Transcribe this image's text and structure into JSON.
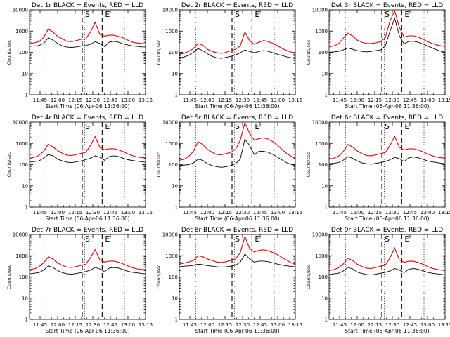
{
  "chart_data": {
    "type": "line",
    "layout": "3x3 grid of panels",
    "x_tick_labels": [
      "11:45",
      "12:00",
      "12:15",
      "12:30",
      "12:45",
      "13:00",
      "13:15"
    ],
    "x_tick_minutes": [
      705,
      720,
      735,
      750,
      765,
      780,
      795
    ],
    "xlim": [
      "11:36",
      "13:15"
    ],
    "xlabel": "Start Time (06-Apr-06 11:36:00)",
    "ylabel": "Counts/sec",
    "yscale": "log",
    "ylim": [
      1,
      10000
    ],
    "y_tick_labels": [
      "1",
      "10",
      "100",
      "1000",
      "10000"
    ],
    "dotted_lines": [
      "11:50",
      "12:23",
      "12:57"
    ],
    "dashed_lines": [
      "12:21",
      "12:38"
    ],
    "markers": [
      {
        "label": "S",
        "at": "12:21"
      },
      {
        "label": "E",
        "at": "12:38"
      }
    ],
    "x": [
      "11:36",
      "11:40",
      "11:44",
      "11:48",
      "11:52",
      "11:56",
      "12:00",
      "12:04",
      "12:08",
      "12:12",
      "12:16",
      "12:20",
      "12:24",
      "12:28",
      "12:32",
      "12:36",
      "12:40",
      "12:44",
      "12:48",
      "12:52",
      "12:56",
      "13:00",
      "13:04",
      "13:08",
      "13:12",
      "13:15"
    ],
    "series_colors": {
      "events": "#000000",
      "lld": "#dd0000"
    },
    "panels": [
      {
        "title": "Det 1r BLACK = Events, RED = LLD",
        "series": [
          {
            "name": "Events",
            "values": [
              190,
              200,
              210,
              260,
              480,
              380,
              260,
              200,
              175,
              170,
              180,
              195,
              210,
              240,
              320,
              260,
              185,
              300,
              330,
              300,
              250,
              220,
              200,
              190,
              180,
              178
            ]
          },
          {
            "name": "LLD",
            "values": [
              260,
              280,
              320,
              500,
              1250,
              900,
              560,
              430,
              330,
              320,
              360,
              410,
              430,
              900,
              2600,
              700,
              580,
              640,
              640,
              560,
              480,
              370,
              300,
              275,
              260,
              255
            ]
          }
        ]
      },
      {
        "title": "Det 2r BLACK = Events, RED = LLD",
        "series": [
          {
            "name": "Events",
            "values": [
              55,
              60,
              72,
              100,
              150,
              120,
              85,
              65,
              55,
              52,
              58,
              65,
              75,
              95,
              130,
              110,
              95,
              110,
              120,
              110,
              95,
              80,
              70,
              60,
              55,
              52
            ]
          },
          {
            "name": "LLD",
            "values": [
              80,
              90,
              110,
              150,
              260,
              220,
              140,
              110,
              95,
              90,
              100,
              120,
              140,
              200,
              900,
              360,
              240,
              300,
              360,
              320,
              260,
              200,
              150,
              120,
              100,
              95
            ]
          }
        ]
      },
      {
        "title": "Det 3r BLACK = Events, RED = LLD",
        "series": [
          {
            "name": "Events",
            "values": [
              100,
              105,
              110,
              130,
              160,
              140,
              120,
              110,
              105,
              110,
              120,
              130,
              200,
              1000,
              4000,
              600,
              250,
              330,
              330,
              300,
              250,
              200,
              160,
              130,
              110,
              100
            ]
          },
          {
            "name": "LLD",
            "values": [
              180,
              200,
              250,
              450,
              800,
              600,
              380,
              300,
              260,
              260,
              280,
              320,
              500,
              3000,
              9000,
              1500,
              520,
              600,
              600,
              520,
              420,
              320,
              260,
              220,
              200,
              190
            ]
          }
        ]
      },
      {
        "title": "Det 4r BLACK = Events, RED = LLD",
        "series": [
          {
            "name": "Events",
            "values": [
              130,
              140,
              150,
              200,
              300,
              260,
              180,
              150,
              130,
              125,
              135,
              150,
              170,
              200,
              260,
              220,
              160,
              240,
              260,
              240,
              200,
              170,
              155,
              145,
              135,
              130
            ]
          },
          {
            "name": "LLD",
            "values": [
              200,
              220,
              270,
              420,
              900,
              700,
              450,
              340,
              280,
              270,
              300,
              340,
              380,
              800,
              2100,
              650,
              500,
              560,
              560,
              490,
              410,
              320,
              260,
              230,
              215,
              210
            ]
          }
        ]
      },
      {
        "title": "Det 5r BLACK = Events, RED = LLD",
        "series": [
          {
            "name": "Events",
            "values": [
              90,
              95,
              100,
              120,
              180,
              160,
              110,
              90,
              80,
              75,
              80,
              90,
              110,
              180,
              1600,
              800,
              300,
              420,
              420,
              380,
              300,
              220,
              160,
              120,
              100,
              95
            ]
          },
          {
            "name": "LLD",
            "values": [
              160,
              180,
              240,
              420,
              1200,
              900,
              520,
              380,
              300,
              290,
              330,
              380,
              520,
              1400,
              9500,
              3000,
              1400,
              1700,
              1800,
              1600,
              1200,
              800,
              500,
              320,
              240,
              200
            ]
          }
        ]
      },
      {
        "title": "Det 6r BLACK = Events, RED = LLD",
        "series": [
          {
            "name": "Events",
            "values": [
              110,
              115,
              125,
              160,
              240,
              200,
              150,
              120,
              110,
              105,
              115,
              125,
              140,
              170,
              220,
              190,
              140,
              210,
              230,
              210,
              180,
              150,
              135,
              125,
              115,
              110
            ]
          },
          {
            "name": "LLD",
            "values": [
              180,
              200,
              250,
              400,
              880,
              680,
              440,
              330,
              270,
              260,
              290,
              330,
              370,
              800,
              2200,
              650,
              490,
              560,
              560,
              490,
              410,
              320,
              260,
              225,
              210,
              205
            ]
          }
        ]
      },
      {
        "title": "Det 7r BLACK = Events, RED = LLD",
        "series": [
          {
            "name": "Events",
            "values": [
              140,
              150,
              160,
              210,
              330,
              280,
              200,
              160,
              140,
              135,
              145,
              160,
              180,
              210,
              280,
              240,
              175,
              260,
              280,
              260,
              220,
              185,
              165,
              155,
              145,
              140
            ]
          },
          {
            "name": "LLD",
            "values": [
              220,
              240,
              300,
              460,
              880,
              700,
              460,
              350,
              290,
              280,
              310,
              350,
              390,
              820,
              1900,
              640,
              500,
              560,
              560,
              490,
              410,
              330,
              270,
              240,
              225,
              220
            ]
          }
        ]
      },
      {
        "title": "Det 8r BLACK = Events, RED = LLD",
        "series": [
          {
            "name": "Events",
            "values": [
              300,
              320,
              330,
              350,
              400,
              380,
              340,
              320,
              300,
              290,
              300,
              320,
              360,
              500,
              1200,
              700,
              500,
              560,
              560,
              520,
              460,
              400,
              360,
              330,
              310,
              300
            ]
          },
          {
            "name": "LLD",
            "values": [
              400,
              450,
              500,
              600,
              1000,
              900,
              700,
              600,
              500,
              480,
              520,
              600,
              700,
              1400,
              8000,
              2200,
              1500,
              1800,
              1900,
              1700,
              1400,
              1100,
              800,
              600,
              450,
              420
            ]
          }
        ]
      },
      {
        "title": "Det 9r BLACK = Events, RED = LLD",
        "series": [
          {
            "name": "Events",
            "values": [
              130,
              140,
              150,
              190,
              280,
              240,
              170,
              145,
              130,
              125,
              135,
              150,
              165,
              190,
              250,
              210,
              160,
              230,
              250,
              230,
              195,
              165,
              150,
              140,
              132,
              128
            ]
          },
          {
            "name": "LLD",
            "values": [
              200,
              220,
              270,
              400,
              760,
              600,
              400,
              310,
              260,
              250,
              280,
              320,
              360,
              800,
              2300,
              640,
              490,
              550,
              550,
              480,
              400,
              310,
              255,
              225,
              210,
              205
            ]
          }
        ]
      }
    ]
  }
}
